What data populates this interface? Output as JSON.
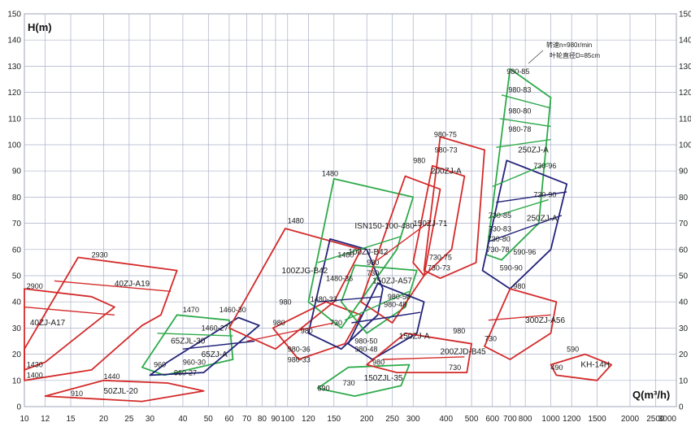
{
  "chart_data": {
    "type": "line",
    "title": "",
    "ylabel": "H(m)",
    "xlabel": "Q(m³/h)",
    "x_scale": "log",
    "y_scale": "linear",
    "ylim": [
      0,
      150
    ],
    "xlim": [
      10,
      3000
    ],
    "grid": true,
    "y_ticks": [
      0,
      10,
      20,
      30,
      40,
      50,
      60,
      70,
      80,
      90,
      100,
      110,
      120,
      130,
      140,
      150
    ],
    "x_ticks": [
      {
        "v": 10,
        "label": "10"
      },
      {
        "v": 12,
        "label": "12"
      },
      {
        "v": 15,
        "label": "15"
      },
      {
        "v": 20,
        "label": "20"
      },
      {
        "v": 25,
        "label": "25"
      },
      {
        "v": 30,
        "label": "30"
      },
      {
        "v": 40,
        "label": "40"
      },
      {
        "v": 50,
        "label": "50"
      },
      {
        "v": 60,
        "label": "60"
      },
      {
        "v": 70,
        "label": "70"
      },
      {
        "v": 80,
        "label": "80"
      },
      {
        "v": 90,
        "label": "90"
      },
      {
        "v": 100,
        "label": "100"
      },
      {
        "v": 120,
        "label": "120"
      },
      {
        "v": 150,
        "label": "150"
      },
      {
        "v": 200,
        "label": "200"
      },
      {
        "v": 250,
        "label": "250"
      },
      {
        "v": 300,
        "label": "300"
      },
      {
        "v": 400,
        "label": "400"
      },
      {
        "v": 500,
        "label": "500"
      },
      {
        "v": 600,
        "label": "600"
      },
      {
        "v": 700,
        "label": "700"
      },
      {
        "v": 800,
        "label": "800"
      },
      {
        "v": 1000,
        "label": "1000"
      },
      {
        "v": 1200,
        "label": "1200"
      },
      {
        "v": 1500,
        "label": "1500"
      },
      {
        "v": 2000,
        "label": "2000"
      },
      {
        "v": 2500,
        "label": "2500"
      },
      {
        "v": 3000,
        "label": "3000"
      }
    ],
    "annotations": [
      "转速n=980r/min",
      "叶轮直径D=85cm"
    ],
    "regions": [
      {
        "color": "#d42a2a",
        "label": "40ZJ-A17",
        "label_at": [
          10.5,
          31
        ],
        "curves": [
          [
            10,
            45
          ],
          [
            18,
            42
          ],
          [
            22,
            38
          ],
          [
            12,
            17
          ],
          [
            10,
            14
          ]
        ]
      },
      {
        "color": "#d42a2a",
        "label": "40ZJ-A19",
        "label_at": [
          22,
          46
        ],
        "curves": [
          [
            16,
            57
          ],
          [
            38,
            52
          ],
          [
            33,
            35
          ],
          [
            28,
            31
          ],
          [
            18,
            14
          ],
          [
            10,
            10
          ],
          [
            10,
            22
          ]
        ]
      },
      {
        "color": "#d42a2a",
        "label": "50ZJL-20",
        "label_at": [
          20,
          5
        ],
        "curves": [
          [
            12,
            4
          ],
          [
            20,
            10
          ],
          [
            35,
            9
          ],
          [
            48,
            6
          ],
          [
            28,
            2
          ]
        ]
      },
      {
        "color": "#2eaa4a",
        "label": "65ZJL-30",
        "label_at": [
          36,
          24
        ],
        "curves": [
          [
            28,
            15
          ],
          [
            38,
            35
          ],
          [
            60,
            33
          ],
          [
            62,
            18
          ],
          [
            34,
            12
          ]
        ]
      },
      {
        "color": "#23237a",
        "label": "65ZJ-A",
        "label_at": [
          47,
          19
        ],
        "curves": [
          [
            30,
            12
          ],
          [
            35,
            17
          ],
          [
            65,
            34
          ],
          [
            78,
            31
          ],
          [
            70,
            27
          ],
          [
            48,
            13
          ]
        ]
      },
      {
        "color": "#d42a2a",
        "label": "100ZJG-B42",
        "label_at": [
          95,
          51
        ],
        "curves": [
          [
            60,
            30
          ],
          [
            98,
            68
          ],
          [
            190,
            60
          ],
          [
            150,
            40
          ],
          [
            90,
            22
          ]
        ]
      },
      {
        "color": "#d42a2a",
        "label": "",
        "label_at": [
          0,
          0
        ],
        "curves": [
          [
            88,
            30
          ],
          [
            140,
            40
          ],
          [
            190,
            35
          ],
          [
            165,
            24
          ],
          [
            110,
            18
          ]
        ]
      },
      {
        "color": "#2eaa4a",
        "label": "ISN150-100-480",
        "label_at": [
          180,
          68
        ],
        "curves": [
          [
            120,
            40
          ],
          [
            150,
            87
          ],
          [
            300,
            80
          ],
          [
            260,
            60
          ],
          [
            160,
            30
          ]
        ]
      },
      {
        "color": "#23237a",
        "label": "100ZJ-B42",
        "label_at": [
          170,
          58
        ],
        "curves": [
          [
            120,
            28
          ],
          [
            145,
            64
          ],
          [
            200,
            60
          ],
          [
            230,
            45
          ],
          [
            220,
            35
          ],
          [
            160,
            22
          ]
        ]
      },
      {
        "color": "#2eaa4a",
        "label": "150ZJ-A57",
        "label_at": [
          210,
          47
        ],
        "curves": [
          [
            160,
            40
          ],
          [
            180,
            54
          ],
          [
            310,
            52
          ],
          [
            280,
            38
          ],
          [
            200,
            28
          ]
        ]
      },
      {
        "color": "#d42a2a",
        "label": "150ZJ-71",
        "label_at": [
          300,
          69
        ],
        "curves": [
          [
            190,
            40
          ],
          [
            280,
            88
          ],
          [
            380,
            83
          ],
          [
            330,
            50
          ],
          [
            250,
            32
          ]
        ]
      },
      {
        "color": "#23237a",
        "label": "150ZJ-A",
        "label_at": [
          265,
          26
        ],
        "curves": [
          [
            170,
            24
          ],
          [
            220,
            47
          ],
          [
            330,
            40
          ],
          [
            310,
            28
          ],
          [
            210,
            18
          ]
        ]
      },
      {
        "color": "#2eaa4a",
        "label": "150ZJL-35",
        "label_at": [
          195,
          10
        ],
        "curves": [
          [
            130,
            7
          ],
          [
            170,
            15
          ],
          [
            290,
            16
          ],
          [
            270,
            8
          ],
          [
            180,
            4
          ]
        ]
      },
      {
        "color": "#d42a2a",
        "label": "200ZJ-A",
        "label_at": [
          350,
          89
        ],
        "curves": [
          [
            300,
            55
          ],
          [
            355,
            92
          ],
          [
            470,
            88
          ],
          [
            420,
            60
          ],
          [
            330,
            50
          ]
        ]
      },
      {
        "color": "#d42a2a",
        "label": "200ZJD-B45",
        "label_at": [
          380,
          20
        ],
        "curves": [
          [
            200,
            16
          ],
          [
            280,
            28
          ],
          [
            500,
            24
          ],
          [
            480,
            13
          ],
          [
            260,
            13
          ]
        ]
      },
      {
        "color": "#d42a2a",
        "label": "",
        "label_at": [
          0,
          0
        ],
        "curves": [
          [
            330,
            52
          ],
          [
            380,
            103
          ],
          [
            560,
            98
          ],
          [
            520,
            55
          ],
          [
            380,
            49
          ]
        ]
      },
      {
        "color": "#2eaa4a",
        "label": "250ZJ-A",
        "label_at": [
          750,
          97
        ],
        "curves": [
          [
            570,
            58
          ],
          [
            700,
            129
          ],
          [
            1000,
            118
          ],
          [
            900,
            70
          ],
          [
            650,
            56
          ]
        ]
      },
      {
        "color": "#23237a",
        "label": "250ZJ-A",
        "label_at": [
          810,
          71
        ],
        "curves": [
          [
            550,
            52
          ],
          [
            680,
            94
          ],
          [
            1150,
            85
          ],
          [
            1000,
            60
          ],
          [
            700,
            45
          ]
        ]
      },
      {
        "color": "#d42a2a",
        "label": "300ZJ-A56",
        "label_at": [
          800,
          32
        ],
        "curves": [
          [
            560,
            23
          ],
          [
            700,
            45
          ],
          [
            1050,
            40
          ],
          [
            1000,
            28
          ],
          [
            700,
            18
          ]
        ]
      },
      {
        "color": "#d42a2a",
        "label": "KH-14H",
        "label_at": [
          1300,
          15
        ],
        "curves": [
          [
            1000,
            16
          ],
          [
            1350,
            20
          ],
          [
            1700,
            16
          ],
          [
            1500,
            10
          ],
          [
            1050,
            12
          ]
        ]
      }
    ],
    "operating_lines": [
      {
        "color": "#d42a2a",
        "points": [
          [
            10,
            38
          ],
          [
            22,
            35
          ]
        ]
      },
      {
        "color": "#d42a2a",
        "points": [
          [
            13,
            48
          ],
          [
            36,
            44
          ]
        ]
      },
      {
        "color": "#2eaa4a",
        "points": [
          [
            32,
            28
          ],
          [
            62,
            27
          ]
        ]
      },
      {
        "color": "#23237a",
        "points": [
          [
            40,
            22
          ],
          [
            75,
            25
          ]
        ]
      },
      {
        "color": "#d42a2a",
        "points": [
          [
            70,
            25
          ],
          [
            150,
            32
          ]
        ]
      },
      {
        "color": "#2eaa4a",
        "points": [
          [
            130,
            55
          ],
          [
            270,
            65
          ]
        ]
      },
      {
        "color": "#23237a",
        "points": [
          [
            130,
            40
          ],
          [
            225,
            42
          ]
        ]
      },
      {
        "color": "#2eaa4a",
        "points": [
          [
            165,
            33
          ],
          [
            290,
            44
          ]
        ]
      },
      {
        "color": "#23237a",
        "points": [
          [
            175,
            32
          ],
          [
            320,
            36
          ]
        ]
      },
      {
        "color": "#d42a2a",
        "points": [
          [
            220,
            56
          ],
          [
            350,
            71
          ]
        ]
      },
      {
        "color": "#d42a2a",
        "points": [
          [
            230,
            18
          ],
          [
            470,
            19
          ]
        ]
      },
      {
        "color": "#2eaa4a",
        "points": [
          [
            580,
            72
          ],
          [
            980,
            79
          ]
        ]
      },
      {
        "color": "#2eaa4a",
        "points": [
          [
            600,
            84
          ],
          [
            980,
            93
          ]
        ]
      },
      {
        "color": "#2eaa4a",
        "points": [
          [
            640,
            110
          ],
          [
            1000,
            107
          ]
        ]
      },
      {
        "color": "#2eaa4a",
        "points": [
          [
            650,
            119
          ],
          [
            1000,
            114
          ]
        ]
      },
      {
        "color": "#2eaa4a",
        "points": [
          [
            620,
            99
          ],
          [
            1000,
            102
          ]
        ]
      },
      {
        "color": "#23237a",
        "points": [
          [
            580,
            63
          ],
          [
            1100,
            73
          ]
        ]
      },
      {
        "color": "#23237a",
        "points": [
          [
            620,
            78
          ],
          [
            1150,
            82
          ]
        ]
      },
      {
        "color": "#d42a2a",
        "points": [
          [
            580,
            33
          ],
          [
            1000,
            35
          ]
        ]
      }
    ],
    "point_labels": [
      {
        "x": 10.2,
        "y": 45,
        "text": "2900"
      },
      {
        "x": 18,
        "y": 57,
        "text": "2930"
      },
      {
        "x": 10.2,
        "y": 15,
        "text": "1430"
      },
      {
        "x": 10.2,
        "y": 11,
        "text": "1400"
      },
      {
        "x": 20,
        "y": 10.5,
        "text": "1440"
      },
      {
        "x": 15,
        "y": 4,
        "text": "910"
      },
      {
        "x": 40,
        "y": 36,
        "text": "1470"
      },
      {
        "x": 55,
        "y": 36,
        "text": "1460-30"
      },
      {
        "x": 47,
        "y": 29,
        "text": "1460-27"
      },
      {
        "x": 31,
        "y": 15,
        "text": "960"
      },
      {
        "x": 40,
        "y": 16,
        "text": "960-30"
      },
      {
        "x": 37,
        "y": 12,
        "text": "960-27"
      },
      {
        "x": 100,
        "y": 70,
        "text": "1480"
      },
      {
        "x": 135,
        "y": 88,
        "text": "1480"
      },
      {
        "x": 155,
        "y": 57,
        "text": "1480"
      },
      {
        "x": 140,
        "y": 48,
        "text": "1480-36"
      },
      {
        "x": 122,
        "y": 40,
        "text": "1480-33"
      },
      {
        "x": 93,
        "y": 39,
        "text": "980"
      },
      {
        "x": 112,
        "y": 28,
        "text": "980"
      },
      {
        "x": 100,
        "y": 21,
        "text": "980-36"
      },
      {
        "x": 100,
        "y": 17,
        "text": "980-33"
      },
      {
        "x": 88,
        "y": 31,
        "text": "980"
      },
      {
        "x": 145,
        "y": 31,
        "text": "730"
      },
      {
        "x": 200,
        "y": 54,
        "text": "980"
      },
      {
        "x": 200,
        "y": 50,
        "text": "730"
      },
      {
        "x": 240,
        "y": 41,
        "text": "980-50"
      },
      {
        "x": 232,
        "y": 38,
        "text": "980-48"
      },
      {
        "x": 180,
        "y": 24,
        "text": "980-50"
      },
      {
        "x": 180,
        "y": 21,
        "text": "980-48"
      },
      {
        "x": 210,
        "y": 16,
        "text": "980"
      },
      {
        "x": 300,
        "y": 93,
        "text": "980"
      },
      {
        "x": 345,
        "y": 56,
        "text": "730-75"
      },
      {
        "x": 340,
        "y": 52,
        "text": "730-73"
      },
      {
        "x": 360,
        "y": 103,
        "text": "980-75"
      },
      {
        "x": 362,
        "y": 97,
        "text": "980-73"
      },
      {
        "x": 162,
        "y": 8,
        "text": "730"
      },
      {
        "x": 130,
        "y": 6,
        "text": "590"
      },
      {
        "x": 425,
        "y": 28,
        "text": "980"
      },
      {
        "x": 410,
        "y": 14,
        "text": "730"
      },
      {
        "x": 680,
        "y": 127,
        "text": "980-85"
      },
      {
        "x": 690,
        "y": 120,
        "text": "980-83"
      },
      {
        "x": 690,
        "y": 112,
        "text": "980-80"
      },
      {
        "x": 690,
        "y": 105,
        "text": "980-78"
      },
      {
        "x": 860,
        "y": 91,
        "text": "730-96"
      },
      {
        "x": 860,
        "y": 80,
        "text": "730-90"
      },
      {
        "x": 580,
        "y": 72,
        "text": "730-85"
      },
      {
        "x": 580,
        "y": 67,
        "text": "730-83"
      },
      {
        "x": 575,
        "y": 63,
        "text": "730-80"
      },
      {
        "x": 570,
        "y": 59,
        "text": "730-78"
      },
      {
        "x": 720,
        "y": 58,
        "text": "590-96"
      },
      {
        "x": 640,
        "y": 52,
        "text": "590-90"
      },
      {
        "x": 720,
        "y": 45,
        "text": "980"
      },
      {
        "x": 560,
        "y": 25,
        "text": "730"
      },
      {
        "x": 1150,
        "y": 21,
        "text": "590"
      },
      {
        "x": 1000,
        "y": 14,
        "text": "490"
      }
    ]
  }
}
